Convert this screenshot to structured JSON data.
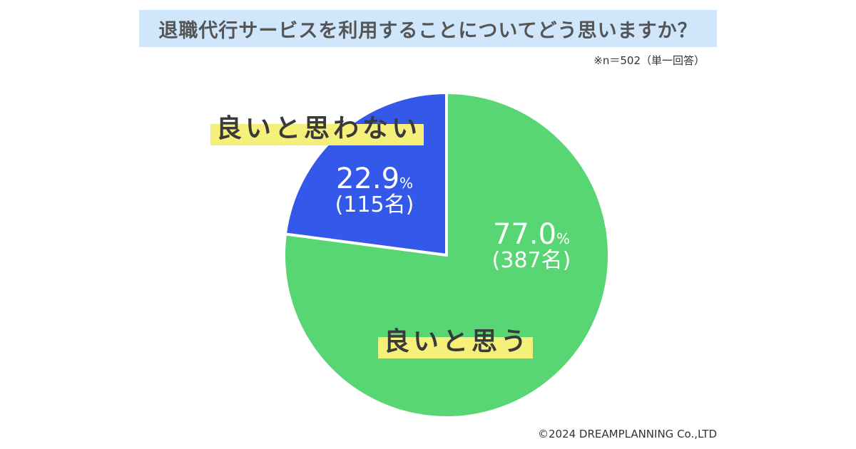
{
  "title": "退職代行サービスを利用することについてどう思いますか？",
  "note": "※n＝502（単一回答）",
  "copyright": "©2024 DREAMPLANNING Co.,LTD",
  "colors": {
    "title_bg": "#cfe6fb",
    "slice_positive": "#57d673",
    "slice_negative": "#3459ea",
    "label_highlight": "#f4f07a"
  },
  "chart_data": {
    "type": "pie",
    "title": "退職代行サービスを利用することについてどう思いますか？",
    "slices": [
      {
        "label": "良いと思う",
        "value": 77.0,
        "percent_text": "77.0",
        "unit": "%",
        "count_text": "(387名)",
        "color": "#57d673"
      },
      {
        "label": "良いと思わない",
        "value": 22.9,
        "percent_text": "22.9",
        "unit": "%",
        "count_text": "(115名)",
        "color": "#3459ea"
      }
    ]
  }
}
